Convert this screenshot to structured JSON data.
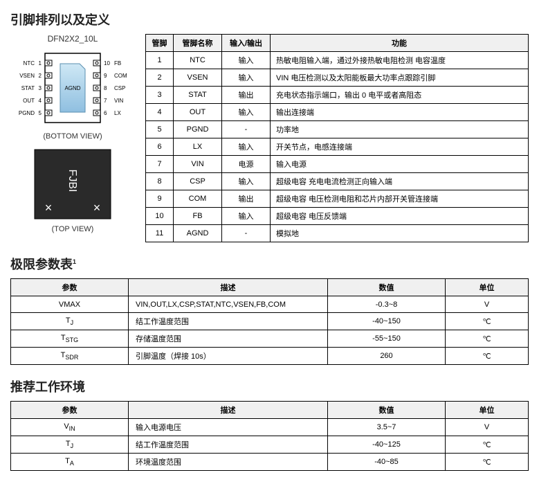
{
  "titles": {
    "pinout": "引脚排列以及定义",
    "limits": "极限参数表",
    "limits_sup": "1",
    "recommended": "推荐工作环境"
  },
  "package": {
    "name": "DFN2X2_10L",
    "bottom_caption": "(BOTTOM VIEW)",
    "top_caption": "(TOP VIEW)",
    "center_text": "AGND",
    "marking": "FJBI",
    "left_pins": [
      "NTC",
      "VSEN",
      "STAT",
      "OUT",
      "PGND"
    ],
    "left_nums": [
      "1",
      "2",
      "3",
      "4",
      "5"
    ],
    "right_pins": [
      "FB",
      "COM",
      "CSP",
      "VIN",
      "LX"
    ],
    "right_nums": [
      "10",
      "9",
      "8",
      "7",
      "6"
    ]
  },
  "pin_headers": [
    "管脚",
    "管脚名称",
    "输入/输出",
    "功能"
  ],
  "pins": [
    {
      "n": "1",
      "name": "NTC",
      "io": "输入",
      "func": "热敏电阻输入端，通过外接热敏电阻检测   电容温度"
    },
    {
      "n": "2",
      "name": "VSEN",
      "io": "输入",
      "func": "VIN 电压检测以及太阳能板最大功率点跟踪引脚"
    },
    {
      "n": "3",
      "name": "STAT",
      "io": "输出",
      "func": "充电状态指示端口，输出  0 电平或者高阻态"
    },
    {
      "n": "4",
      "name": "OUT",
      "io": "输入",
      "func": "输出连接端"
    },
    {
      "n": "5",
      "name": "PGND",
      "io": "-",
      "func": "功率地"
    },
    {
      "n": "6",
      "name": "LX",
      "io": "输入",
      "func": "开关节点，电感连接端"
    },
    {
      "n": "7",
      "name": "VIN",
      "io": "电源",
      "func": "输入电源"
    },
    {
      "n": "8",
      "name": "CSP",
      "io": "输入",
      "func": "超级电容 充电电流检测正向输入端"
    },
    {
      "n": "9",
      "name": "COM",
      "io": "输出",
      "func": "超级电容 电压检测电阻和芯片内部开关管连接端"
    },
    {
      "n": "10",
      "name": "FB",
      "io": "输入",
      "func": "超级电容 电压反馈端"
    },
    {
      "n": "11",
      "name": "AGND",
      "io": "-",
      "func": "模拟地"
    }
  ],
  "limit_headers": [
    "参数",
    "描述",
    "数值",
    "单位"
  ],
  "limits": [
    {
      "p": "VMAX",
      "d": "VIN,OUT,LX,CSP,STAT,NTC,VSEN,FB,COM",
      "v": "-0.3~8",
      "u": "V"
    },
    {
      "p": "T",
      "psub": "J",
      "d": "结工作温度范围",
      "v": "-40~150",
      "u": "℃"
    },
    {
      "p": "T",
      "psub": "STG",
      "d": "存储温度范围",
      "v": "-55~150",
      "u": "℃"
    },
    {
      "p": "T",
      "psub": "SDR",
      "d": "引脚温度（焊接 10s）",
      "v": "260",
      "u": "℃"
    }
  ],
  "rec_headers": [
    "参数",
    "描述",
    "数值",
    "单位"
  ],
  "recs": [
    {
      "p": "V",
      "psub": "IN",
      "d": "输入电源电压",
      "v": "3.5~7",
      "u": "V"
    },
    {
      "p": "T",
      "psub": "J",
      "d": "结工作温度范围",
      "v": "-40~125",
      "u": "℃"
    },
    {
      "p": "T",
      "psub": "A",
      "d": "环境温度范围",
      "v": "-40~85",
      "u": "℃"
    }
  ]
}
